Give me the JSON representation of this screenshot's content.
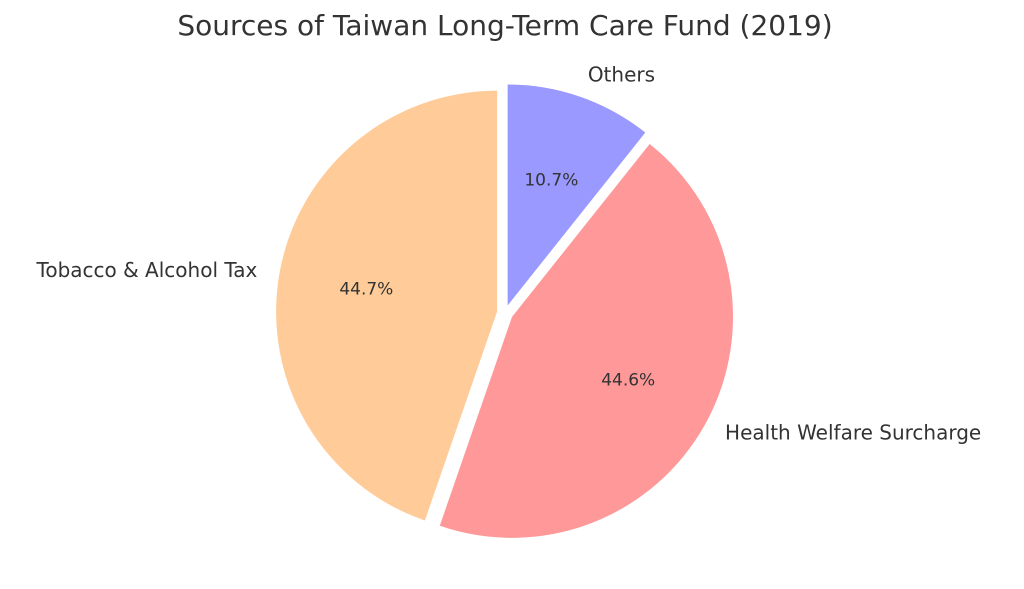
{
  "chart_data": {
    "type": "pie",
    "title": "Sources of Taiwan Long-Term Care Fund (2019)",
    "categories": [
      "Others",
      "Health Welfare Surcharge",
      "Tobacco & Alcohol Tax"
    ],
    "values": [
      10.7,
      44.6,
      44.7
    ],
    "value_labels": [
      "10.7%",
      "44.6%",
      "44.7%"
    ],
    "colors": [
      "#9999ff",
      "#ff9999",
      "#ffcc99"
    ]
  }
}
